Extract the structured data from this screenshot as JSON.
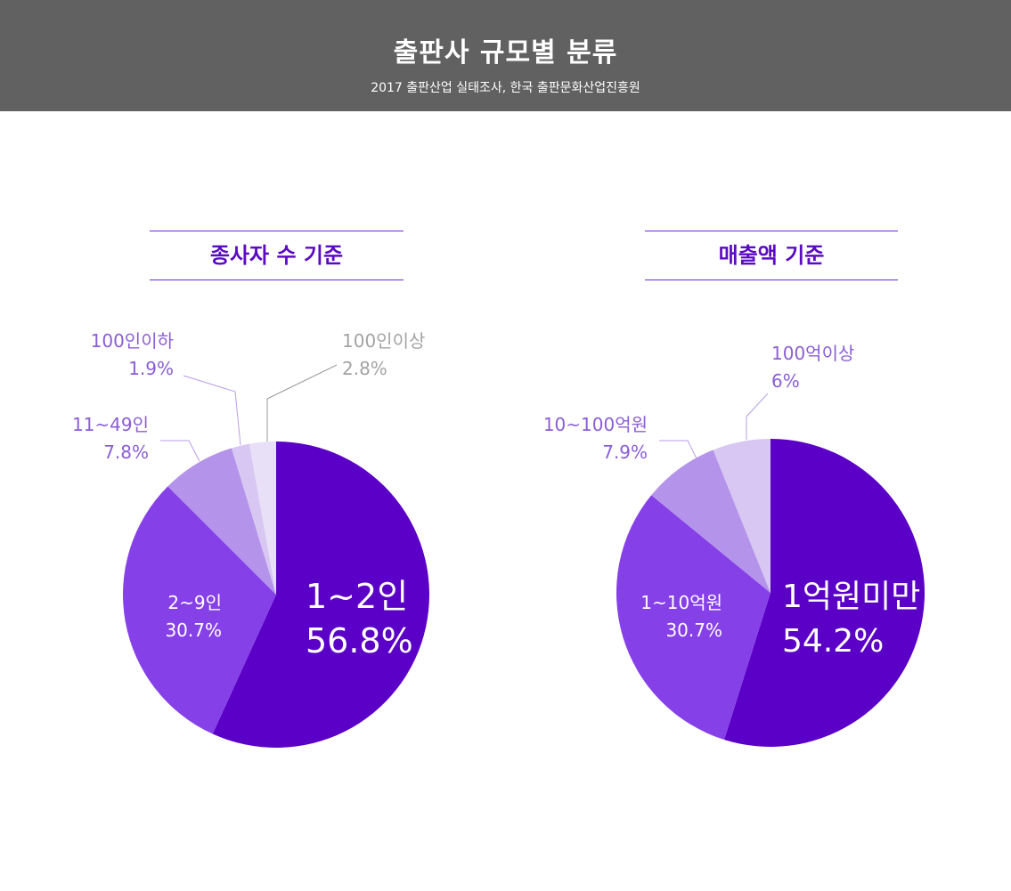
{
  "header": {
    "title": "출판사 규모별 분류",
    "subtitle": "2017 출판산업 실태조사, 한국 출판문화산업진흥원"
  },
  "chart_data": [
    {
      "type": "pie",
      "title": "종사자 수 기준",
      "slices": [
        {
          "label": "1~2인",
          "value": 56.8,
          "value_text": "56.8%",
          "color": "#5b00c6"
        },
        {
          "label": "2~9인",
          "value": 30.7,
          "value_text": "30.7%",
          "color": "#8640e8"
        },
        {
          "label": "11~49인",
          "value": 7.8,
          "value_text": "7.8%",
          "color": "#b493ea"
        },
        {
          "label": "100인이하",
          "value": 1.9,
          "value_text": "1.9%",
          "color": "#d7c7f2"
        },
        {
          "label": "100인이상",
          "value": 2.8,
          "value_text": "2.8%",
          "color": "#e8e0f7"
        }
      ]
    },
    {
      "type": "pie",
      "title": "매출액 기준",
      "slices": [
        {
          "label": "1억원미만",
          "value": 54.2,
          "value_text": "54.2%",
          "color": "#5b00c6"
        },
        {
          "label": "1~10억원",
          "value": 30.7,
          "value_text": "30.7%",
          "color": "#8640e8"
        },
        {
          "label": "10~100억원",
          "value": 7.9,
          "value_text": "7.9%",
          "color": "#b493ea"
        },
        {
          "label": "100억이상",
          "value": 6,
          "value_text": "6%",
          "color": "#d7c7f2"
        }
      ]
    }
  ],
  "colors": {
    "header_bg": "#616161",
    "accent": "#5b0bc4",
    "label_purple": "#8a5ed6",
    "label_gray": "#a3a3a3",
    "leader_purple": "#b99de6",
    "leader_gray": "#9a9a9a"
  }
}
